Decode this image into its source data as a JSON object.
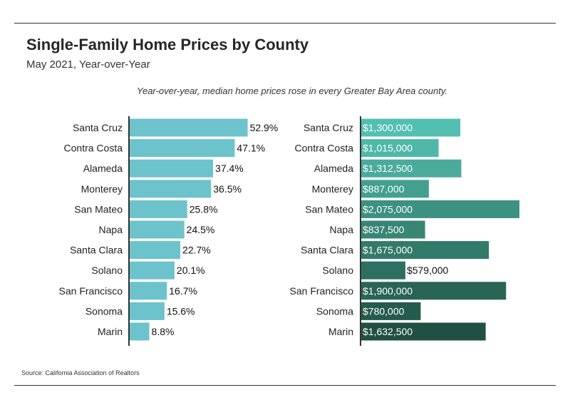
{
  "title": "Single-Family Home Prices by County",
  "subtitle": "May 2021, Year-over-Year",
  "caption": "Year-over-year, median home prices rose in every Greater Bay Area county.",
  "source": "Source:  California Association of Realtors",
  "colors": {
    "pct_bar": "#6cc3cc",
    "price_bars": [
      "#52bfb0",
      "#4fb8a8",
      "#4aab9b",
      "#43a08f",
      "#3c9180",
      "#378575",
      "#327a6a",
      "#2d6f60",
      "#296556",
      "#255b4d",
      "#214f44"
    ],
    "axis": "#333333"
  },
  "chart_data": [
    {
      "type": "bar",
      "orientation": "horizontal",
      "categories": [
        "Santa Cruz",
        "Contra Costa",
        "Alameda",
        "Monterey",
        "San Mateo",
        "Napa",
        "Santa Clara",
        "Solano",
        "San Francisco",
        "Sonoma",
        "Marin"
      ],
      "values": [
        52.9,
        47.1,
        37.4,
        36.5,
        25.8,
        24.5,
        22.7,
        20.1,
        16.7,
        15.6,
        8.8
      ],
      "labels": [
        "52.9%",
        "47.1%",
        "37.4%",
        "36.5%",
        "25.8%",
        "24.5%",
        "22.7%",
        "20.1%",
        "16.7%",
        "15.6%",
        "8.8%"
      ],
      "xlim": [
        0,
        100
      ]
    },
    {
      "type": "bar",
      "orientation": "horizontal",
      "categories": [
        "Santa Cruz",
        "Contra Costa",
        "Alameda",
        "Monterey",
        "San Mateo",
        "Napa",
        "Santa Clara",
        "Solano",
        "San Francisco",
        "Sonoma",
        "Marin"
      ],
      "values": [
        1300000,
        1015000,
        1312500,
        887000,
        2075000,
        837500,
        1675000,
        579000,
        1900000,
        780000,
        1632500
      ],
      "labels": [
        "$1,300,000",
        "$1,015,000",
        "$1,312,500",
        "$887,000",
        "$2,075,000",
        "$837,500",
        "$1,675,000",
        "$579,000",
        "$1,900,000",
        "$780,000",
        "$1,632,500"
      ],
      "xlim": [
        0,
        2400000
      ]
    }
  ]
}
